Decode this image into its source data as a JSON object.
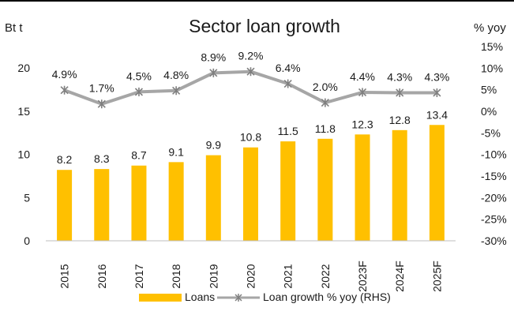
{
  "chart_data": {
    "type": "bar",
    "title": "Sector loan growth",
    "y_left_label": "Bt t",
    "y_right_label": "% yoy",
    "categories": [
      "2015",
      "2016",
      "2017",
      "2018",
      "2019",
      "2020",
      "2021",
      "2022",
      "2023F",
      "2024F",
      "2025F"
    ],
    "series": [
      {
        "name": "Loans",
        "type": "bar",
        "axis": "left",
        "values": [
          8.2,
          8.3,
          8.7,
          9.1,
          9.9,
          10.8,
          11.5,
          11.8,
          12.3,
          12.8,
          13.4
        ],
        "labels": [
          "8.2",
          "8.3",
          "8.7",
          "9.1",
          "9.9",
          "10.8",
          "11.5",
          "11.8",
          "12.3",
          "12.8",
          "13.4"
        ],
        "color": "#FFC000"
      },
      {
        "name": "Loan growth % yoy (RHS)",
        "type": "line",
        "axis": "right",
        "values": [
          4.9,
          1.7,
          4.5,
          4.8,
          8.9,
          9.2,
          6.4,
          2.0,
          4.4,
          4.3,
          4.3
        ],
        "labels": [
          "4.9%",
          "1.7%",
          "4.5%",
          "4.8%",
          "8.9%",
          "9.2%",
          "6.4%",
          "2.0%",
          "4.4%",
          "4.3%",
          "4.3%"
        ],
        "color": "#A6A6A6",
        "marker_color": "#7F7F7F"
      }
    ],
    "y_left": {
      "min": 0,
      "max": 20,
      "ticks": [
        0,
        5,
        10,
        15,
        20
      ]
    },
    "y_right": {
      "min": -30,
      "max": 15,
      "ticks": [
        -30,
        -25,
        -20,
        -15,
        -10,
        -5,
        0,
        5,
        10,
        15
      ],
      "tick_labels": [
        "-30%",
        "-25%",
        "-20%",
        "-15%",
        "-10%",
        "-5%",
        "0%",
        "5%",
        "10%",
        "15%"
      ]
    },
    "legend_position": "bottom",
    "grid": false
  }
}
